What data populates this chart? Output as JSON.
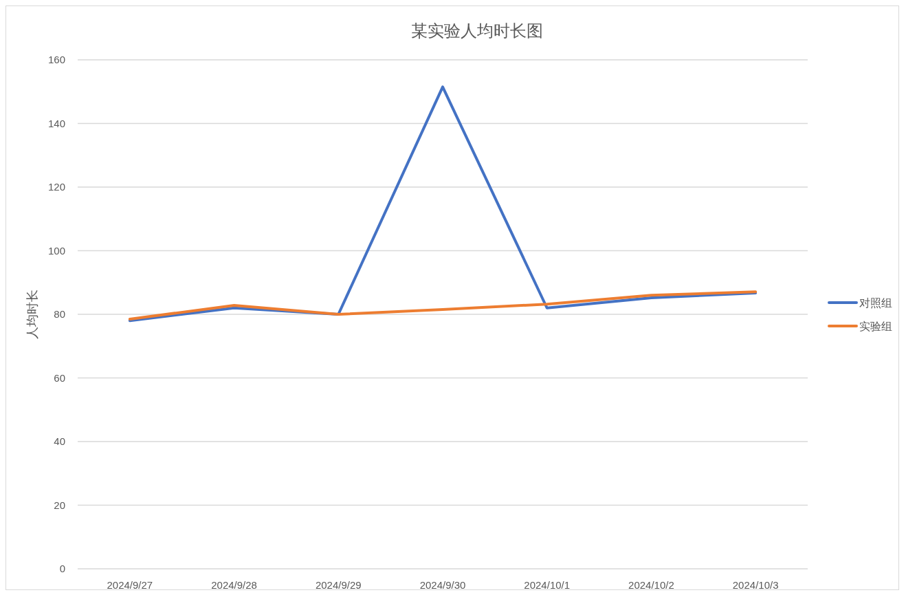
{
  "chart_data": {
    "type": "line",
    "title": "某实验人均时长图",
    "ylabel": "人均时长",
    "categories": [
      "2024/9/27",
      "2024/9/28",
      "2024/9/29",
      "2024/9/30",
      "2024/10/1",
      "2024/10/2",
      "2024/10/3"
    ],
    "series": [
      {
        "name": "对照组",
        "color": "#4472c4",
        "values": [
          78,
          82,
          80,
          151.5,
          82,
          85.2,
          86.7
        ]
      },
      {
        "name": "实验组",
        "color": "#ed7d31",
        "values": [
          78.5,
          82.8,
          80,
          81.5,
          83.2,
          86,
          87.1
        ]
      }
    ],
    "ylim": [
      0,
      160
    ],
    "yticks": [
      0,
      20,
      40,
      60,
      80,
      100,
      120,
      140,
      160
    ],
    "grid": "y",
    "legend": "right",
    "marker": "none",
    "line_style": "solid"
  }
}
